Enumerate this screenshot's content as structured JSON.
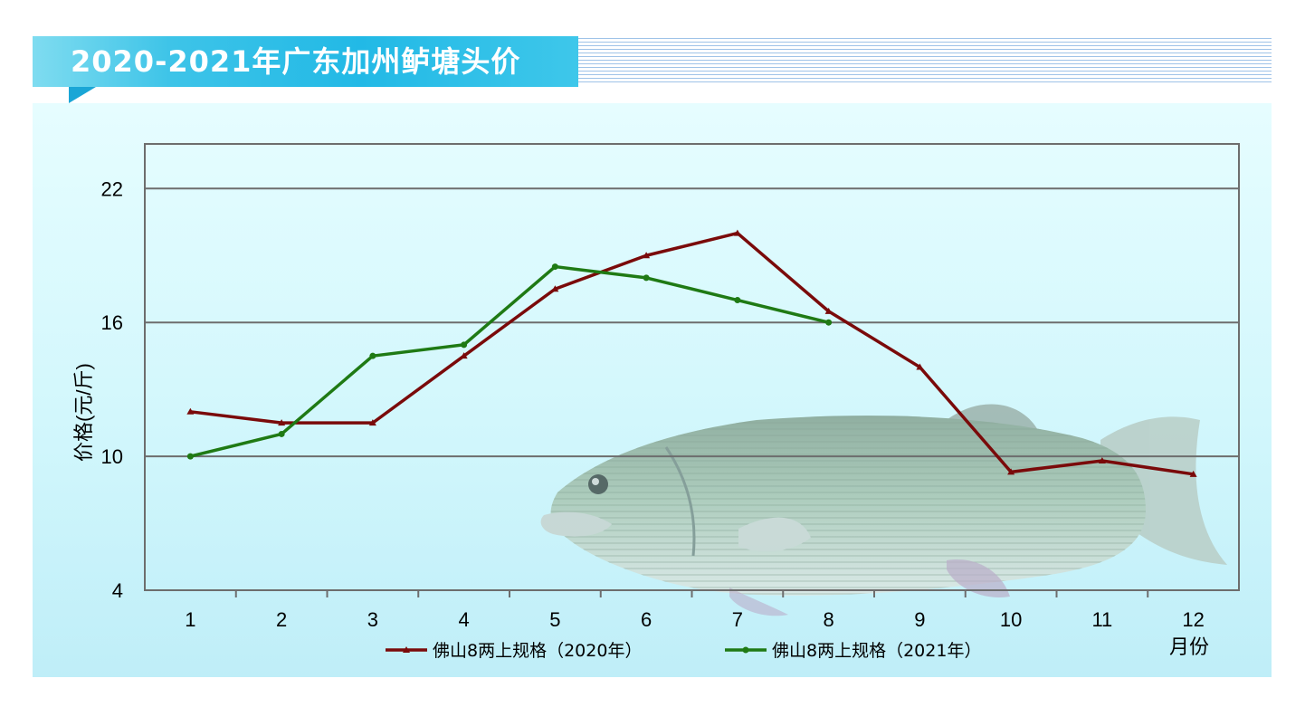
{
  "header": {
    "title": "2020-2021年广东加州鲈塘头价"
  },
  "chart_data": {
    "type": "line",
    "categories": [
      "1",
      "2",
      "3",
      "4",
      "5",
      "6",
      "7",
      "8",
      "9",
      "10",
      "11",
      "12"
    ],
    "xlabel": "月份",
    "ylabel": "价格(元/斤)",
    "ylim": [
      4,
      24
    ],
    "yticks": [
      "4",
      "10",
      "16",
      "22"
    ],
    "grid": true,
    "legend_position": "bottom",
    "series": [
      {
        "name": "佛山8两上规格（2020年）",
        "color": "#7a0a0a",
        "marker": "triangle",
        "values": [
          12.0,
          11.5,
          11.5,
          14.5,
          17.5,
          19.0,
          20.0,
          16.5,
          14.0,
          9.3,
          9.8,
          9.2
        ]
      },
      {
        "name": "佛山8两上规格（2021年）",
        "color": "#1f7a14",
        "marker": "circle",
        "values": [
          10.0,
          11.0,
          14.5,
          15.0,
          18.5,
          18.0,
          17.0,
          16.0,
          null,
          null,
          null,
          null
        ]
      }
    ]
  }
}
